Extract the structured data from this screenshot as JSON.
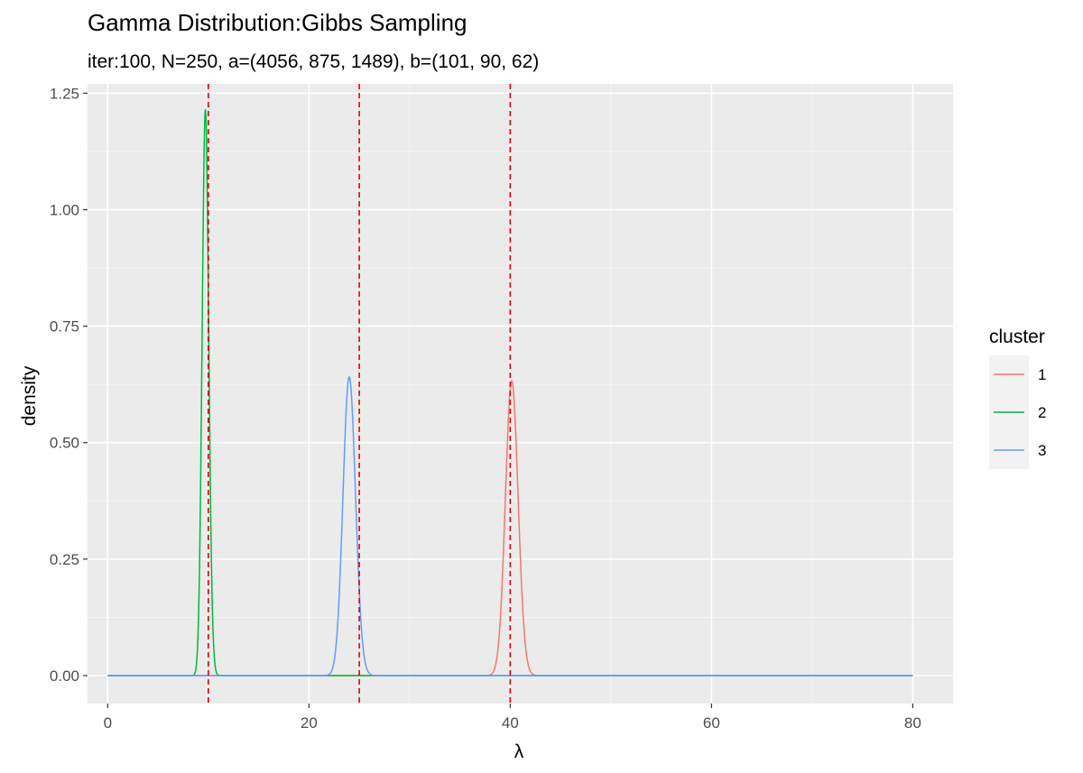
{
  "chart_data": {
    "type": "line",
    "title": "Gamma Distribution:Gibbs Sampling",
    "subtitle": "iter:100, N=250, a=(4056, 875, 1489), b=(101, 90, 62)",
    "xlabel": "λ",
    "ylabel": "density",
    "xlim": [
      -2,
      84
    ],
    "ylim": [
      -0.06,
      1.27
    ],
    "x_ticks": [
      0,
      20,
      40,
      60,
      80
    ],
    "x_tick_labels": [
      "0",
      "20",
      "40",
      "60",
      "80"
    ],
    "y_ticks": [
      0,
      0.25,
      0.5,
      0.75,
      1.0,
      1.25
    ],
    "y_tick_labels": [
      "0.00",
      "0.25",
      "0.50",
      "0.75",
      "1.00",
      "1.25"
    ],
    "x_range": [
      0,
      80
    ],
    "grid": true,
    "legend": {
      "title": "cluster",
      "position": "right"
    },
    "series": [
      {
        "name": "1",
        "color": "#F8766D",
        "shape": "gamma",
        "a": 4056,
        "b": 101
      },
      {
        "name": "2",
        "color": "#00BA38",
        "shape": "gamma",
        "a": 875,
        "b": 90
      },
      {
        "name": "3",
        "color": "#619CFF",
        "shape": "gamma",
        "a": 1489,
        "b": 62
      }
    ],
    "vlines": [
      {
        "x": 10,
        "color": "#E00000",
        "style": "dashed"
      },
      {
        "x": 25,
        "color": "#E00000",
        "style": "dashed"
      },
      {
        "x": 40,
        "color": "#E00000",
        "style": "dashed"
      }
    ]
  }
}
